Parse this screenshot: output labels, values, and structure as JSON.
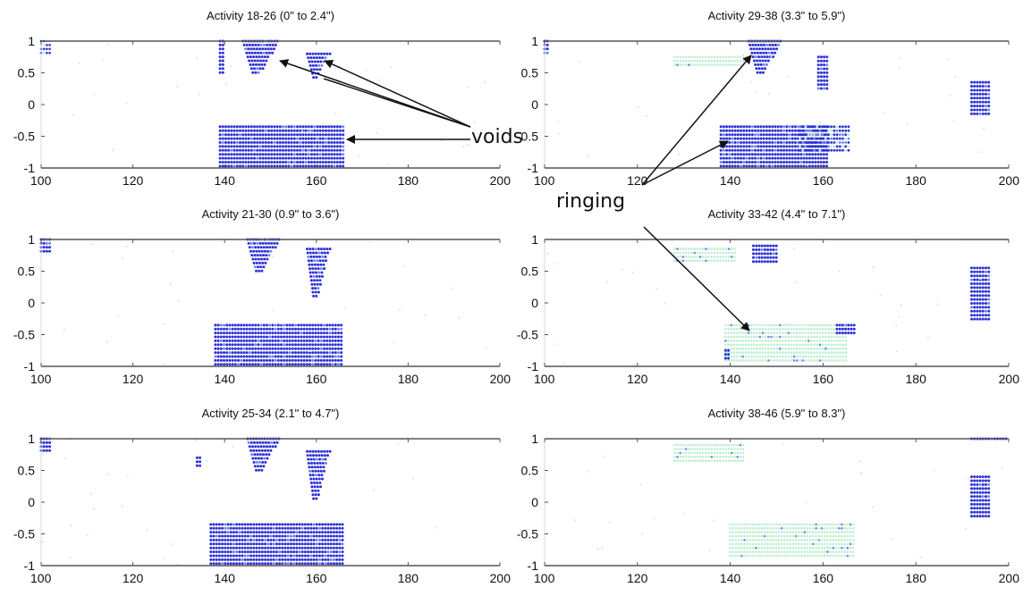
{
  "chart_data": [
    {
      "type": "scatter",
      "title": "Activity 18-26 (0\" to 2.4\")",
      "xlim": [
        100,
        200
      ],
      "ylim": [
        -1,
        1
      ],
      "xticks": [
        "100",
        "120",
        "140",
        "160",
        "180",
        "200"
      ],
      "yticks": [
        "1",
        "0.5",
        "0",
        "-0.5",
        "-1"
      ],
      "regions": [
        {
          "kind": "rect",
          "x": [
            139,
            166
          ],
          "y": [
            -1,
            -0.35
          ],
          "intensity": "dense"
        },
        {
          "kind": "tri",
          "x": [
            144,
            152
          ],
          "y": [
            0.45,
            1
          ],
          "intensity": "dense"
        },
        {
          "kind": "tri",
          "x": [
            158,
            163
          ],
          "y": [
            0.4,
            0.8
          ],
          "intensity": "dense"
        },
        {
          "kind": "rect",
          "x": [
            139,
            140
          ],
          "y": [
            0.5,
            1
          ],
          "intensity": "dense"
        },
        {
          "kind": "rect",
          "x": [
            100,
            102
          ],
          "y": [
            0.8,
            1
          ],
          "intensity": "sparse"
        }
      ]
    },
    {
      "type": "scatter",
      "title": "Activity 29-38 (3.3\" to 5.9\")",
      "xlim": [
        100,
        200
      ],
      "ylim": [
        -1,
        1
      ],
      "xticks": [
        "100",
        "120",
        "140",
        "160",
        "180",
        "200"
      ],
      "yticks": [
        "1",
        "0.5",
        "0",
        "-0.5",
        "-1"
      ],
      "regions": [
        {
          "kind": "rect",
          "x": [
            138,
            161
          ],
          "y": [
            -1,
            -0.35
          ],
          "intensity": "dense"
        },
        {
          "kind": "rect",
          "x": [
            155,
            166
          ],
          "y": [
            -0.75,
            -0.35
          ],
          "intensity": "mixed"
        },
        {
          "kind": "tri",
          "x": [
            144,
            151
          ],
          "y": [
            0.45,
            1
          ],
          "intensity": "dense"
        },
        {
          "kind": "rect",
          "x": [
            159,
            161
          ],
          "y": [
            0.2,
            0.75
          ],
          "intensity": "dense"
        },
        {
          "kind": "rect",
          "x": [
            192,
            196
          ],
          "y": [
            -0.2,
            0.35
          ],
          "intensity": "dense"
        },
        {
          "kind": "rect",
          "x": [
            100,
            101
          ],
          "y": [
            0.8,
            1
          ],
          "intensity": "dense"
        },
        {
          "kind": "rect",
          "x": [
            128,
            143
          ],
          "y": [
            0.6,
            0.75
          ],
          "intensity": "faint"
        }
      ]
    },
    {
      "type": "scatter",
      "title": "Activity 21-30 (0.9\" to 3.6\")",
      "xlim": [
        100,
        200
      ],
      "ylim": [
        -1,
        1
      ],
      "xticks": [
        "100",
        "120",
        "140",
        "160",
        "180",
        "200"
      ],
      "yticks": [
        "1",
        "0.5",
        "0",
        "-0.5",
        "-1"
      ],
      "regions": [
        {
          "kind": "rect",
          "x": [
            138,
            166
          ],
          "y": [
            -1,
            -0.35
          ],
          "intensity": "dense"
        },
        {
          "kind": "tri",
          "x": [
            145,
            152
          ],
          "y": [
            0.45,
            1
          ],
          "intensity": "dense"
        },
        {
          "kind": "tri",
          "x": [
            158,
            163
          ],
          "y": [
            0.05,
            0.85
          ],
          "intensity": "dense"
        },
        {
          "kind": "rect",
          "x": [
            100,
            102
          ],
          "y": [
            0.8,
            1
          ],
          "intensity": "dense"
        }
      ]
    },
    {
      "type": "scatter",
      "title": "Activity 33-42 (4.4\" to 7.1\")",
      "xlim": [
        100,
        200
      ],
      "ylim": [
        -1,
        1
      ],
      "xticks": [
        "100",
        "120",
        "140",
        "160",
        "180",
        "200"
      ],
      "yticks": [
        "1",
        "0.5",
        "0",
        "-0.5",
        "-1"
      ],
      "regions": [
        {
          "kind": "rect",
          "x": [
            139,
            165
          ],
          "y": [
            -0.95,
            -0.35
          ],
          "intensity": "faint"
        },
        {
          "kind": "rect",
          "x": [
            163,
            167
          ],
          "y": [
            -0.5,
            -0.35
          ],
          "intensity": "dense"
        },
        {
          "kind": "rect",
          "x": [
            139,
            140
          ],
          "y": [
            -0.9,
            -0.75
          ],
          "intensity": "dense"
        },
        {
          "kind": "rect",
          "x": [
            192,
            196
          ],
          "y": [
            -0.3,
            0.55
          ],
          "intensity": "dense"
        },
        {
          "kind": "rect",
          "x": [
            145,
            150
          ],
          "y": [
            0.6,
            0.9
          ],
          "intensity": "dense"
        },
        {
          "kind": "rect",
          "x": [
            128,
            141
          ],
          "y": [
            0.65,
            0.85
          ],
          "intensity": "faint"
        },
        {
          "kind": "rect",
          "x": [
            190,
            200
          ],
          "y": [
            0.95,
            1
          ],
          "intensity": "faint"
        }
      ]
    },
    {
      "type": "scatter",
      "title": "Activity 25-34 (2.1\" to 4.7\")",
      "xlim": [
        100,
        200
      ],
      "ylim": [
        -1,
        1
      ],
      "xticks": [
        "100",
        "120",
        "140",
        "160",
        "180",
        "200"
      ],
      "yticks": [
        "1",
        "0.5",
        "0",
        "-0.5",
        "-1"
      ],
      "regions": [
        {
          "kind": "rect",
          "x": [
            137,
            166
          ],
          "y": [
            -1,
            -0.35
          ],
          "intensity": "dense"
        },
        {
          "kind": "tri",
          "x": [
            145,
            152
          ],
          "y": [
            0.45,
            1
          ],
          "intensity": "dense"
        },
        {
          "kind": "tri",
          "x": [
            158,
            163
          ],
          "y": [
            0.0,
            0.8
          ],
          "intensity": "dense"
        },
        {
          "kind": "rect",
          "x": [
            100,
            102
          ],
          "y": [
            0.8,
            1
          ],
          "intensity": "dense"
        },
        {
          "kind": "rect",
          "x": [
            134,
            135
          ],
          "y": [
            0.55,
            0.7
          ],
          "intensity": "dense"
        }
      ]
    },
    {
      "type": "scatter",
      "title": "Activity 38-46 (5.9\" to 8.3\")",
      "xlim": [
        100,
        200
      ],
      "ylim": [
        -1,
        1
      ],
      "xticks": [
        "100",
        "120",
        "140",
        "160",
        "180",
        "200"
      ],
      "yticks": [
        "1",
        "0.5",
        "0",
        "-0.5",
        "-1"
      ],
      "regions": [
        {
          "kind": "rect",
          "x": [
            192,
            196
          ],
          "y": [
            -0.25,
            0.4
          ],
          "intensity": "dense"
        },
        {
          "kind": "rect",
          "x": [
            192,
            200
          ],
          "y": [
            0.97,
            1
          ],
          "intensity": "dense"
        },
        {
          "kind": "rect",
          "x": [
            128,
            143
          ],
          "y": [
            0.6,
            0.9
          ],
          "intensity": "faint"
        },
        {
          "kind": "rect",
          "x": [
            140,
            167
          ],
          "y": [
            -0.85,
            -0.35
          ],
          "intensity": "faint"
        }
      ]
    }
  ],
  "annotations": [
    {
      "text": "voids",
      "arrows": 4
    },
    {
      "text": "ringing",
      "arrows": 3
    }
  ],
  "colors": {
    "dense": "#2b2fd6",
    "mid": "#6f86e8",
    "faint": "#bfeed2",
    "axis": "#555555",
    "text": "#111111"
  }
}
